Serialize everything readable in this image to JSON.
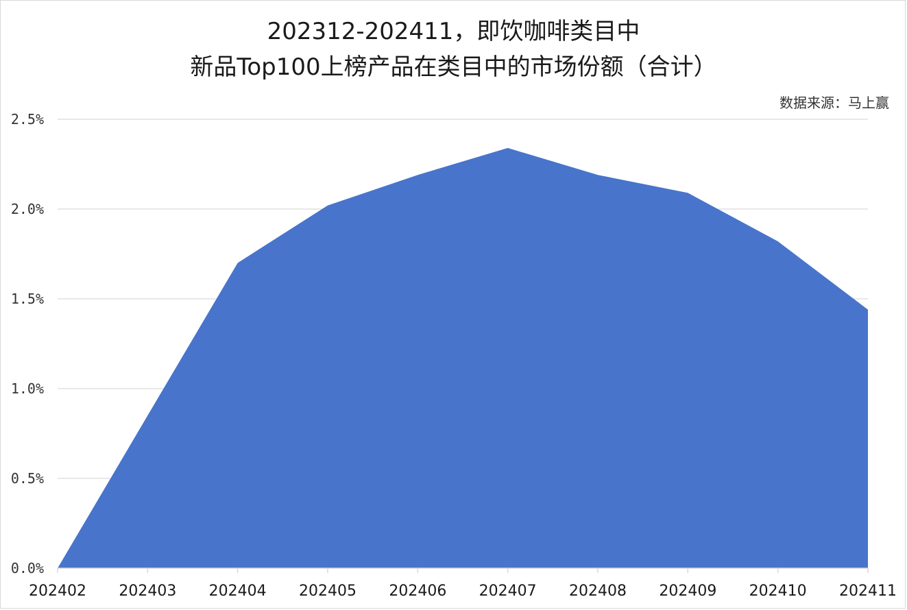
{
  "chart_data": {
    "type": "area",
    "title_line1": "202312-202411，即饮咖啡类目中",
    "title_line2": "新品Top100上榜产品在类目中的市场份额（合计）",
    "source": "数据来源：马上赢",
    "xlabel": "",
    "ylabel": "",
    "categories": [
      "202402",
      "202403",
      "202404",
      "202405",
      "202406",
      "202407",
      "202408",
      "202409",
      "202410",
      "202411"
    ],
    "series": [
      {
        "values": [
          0.0,
          0.85,
          1.7,
          2.02,
          2.19,
          2.34,
          2.19,
          2.09,
          1.82,
          1.44
        ],
        "color": "#4874cb"
      }
    ],
    "y_unit": "%",
    "ylim": [
      0,
      2.5
    ],
    "yticks": [
      "0.0%",
      "0.5%",
      "1.0%",
      "1.5%",
      "2.0%",
      "2.5%"
    ],
    "grid": true,
    "legend": "none",
    "gridline_color": "#d9d9d9"
  }
}
